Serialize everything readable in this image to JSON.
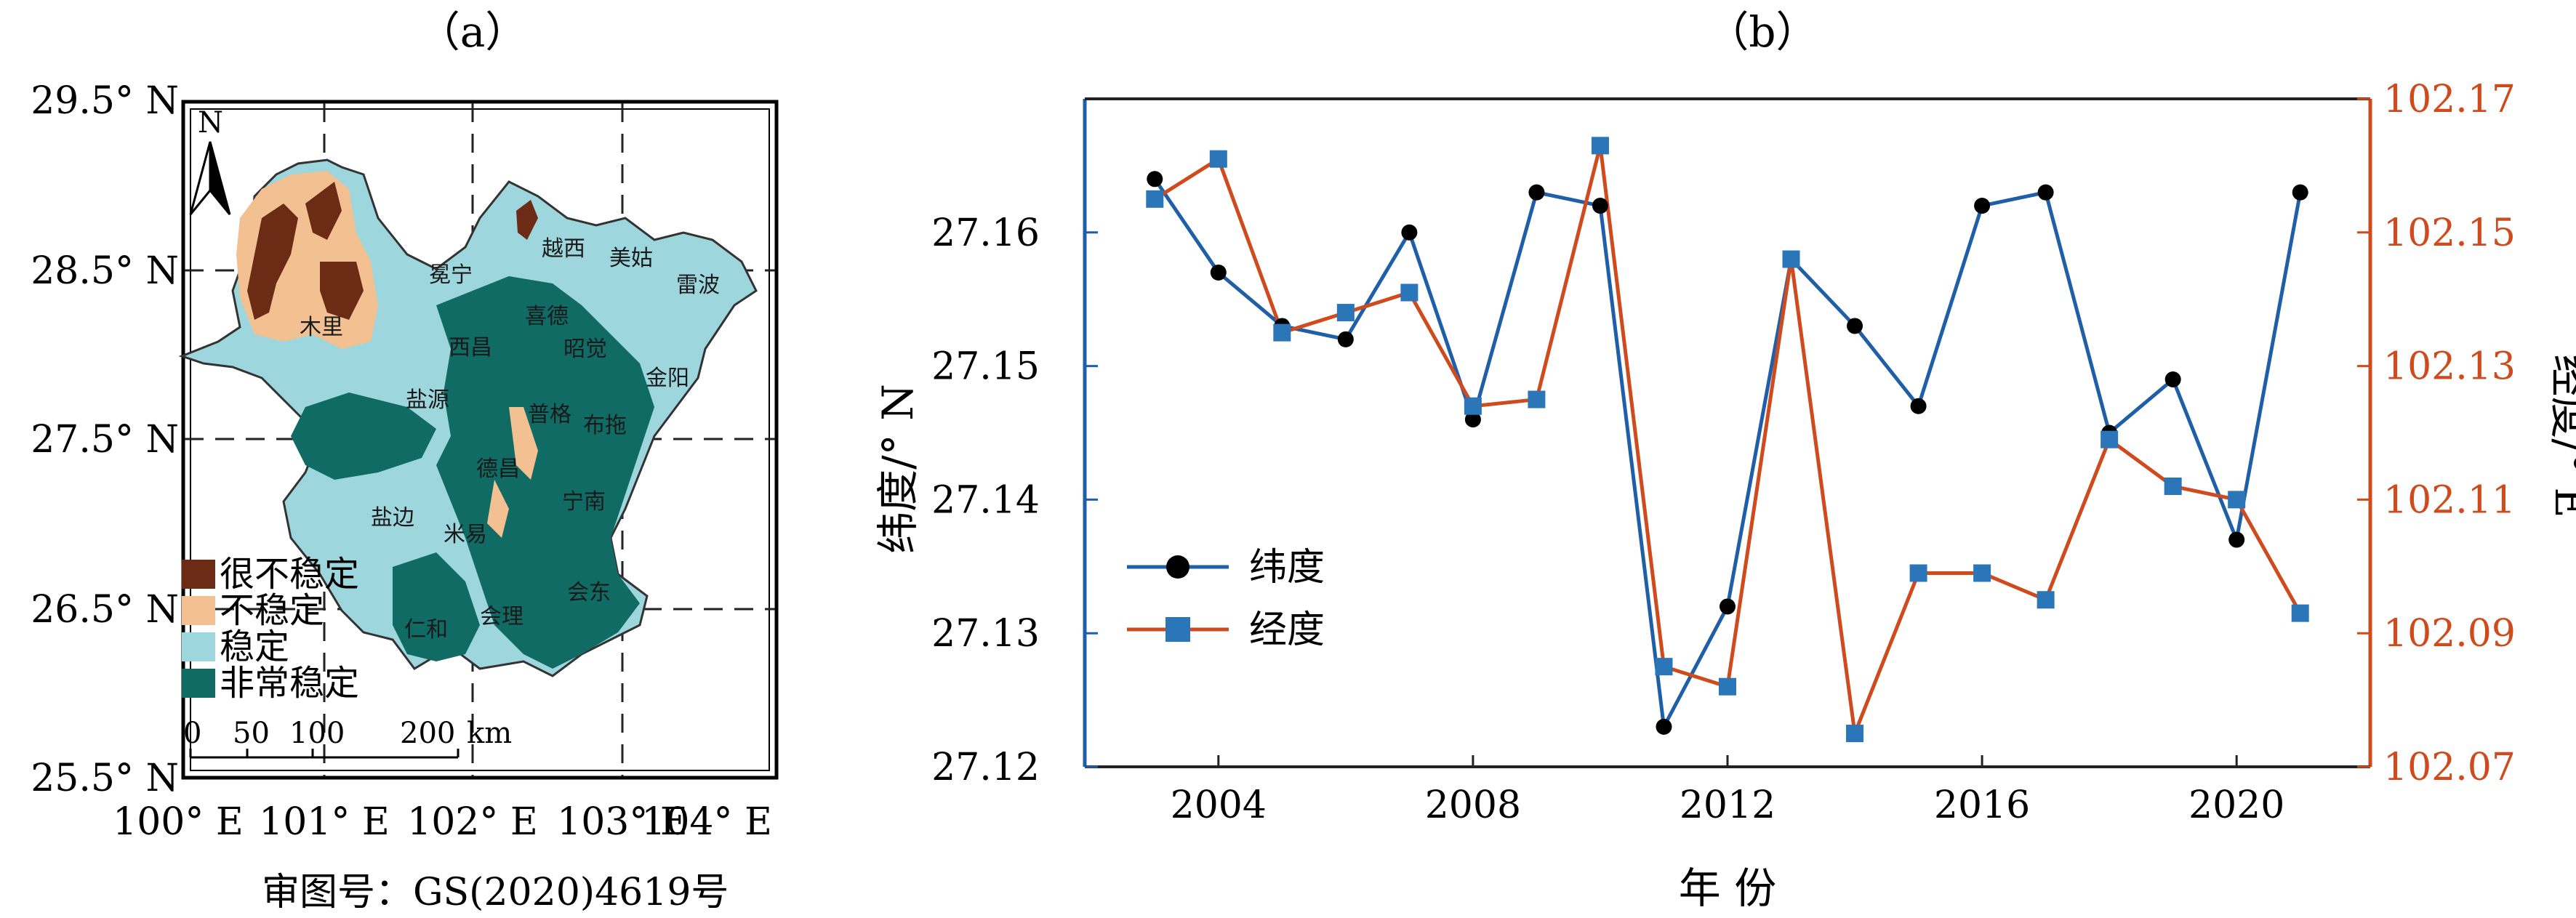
{
  "panel_a": {
    "title": "（a）",
    "y_ticks": [
      "29.5° N",
      "28.5° N",
      "27.5° N",
      "26.5° N",
      "25.5° N"
    ],
    "x_ticks": [
      "100° E",
      "101° E",
      "102° E",
      "103° E",
      "104° E"
    ],
    "north_label": "N",
    "scale_ticks": [
      "0",
      "50",
      "100",
      "200"
    ],
    "scale_unit": "km",
    "legend": [
      {
        "label": "很不稳定",
        "color": "#6b2b14"
      },
      {
        "label": "不稳定",
        "color": "#f3c191"
      },
      {
        "label": "稳定",
        "color": "#9dd6dd"
      },
      {
        "label": "非常稳定",
        "color": "#0f6b63"
      }
    ],
    "place_names": [
      "冕宁",
      "越西",
      "美姑",
      "雷波",
      "木里",
      "喜德",
      "昭觉",
      "金阳",
      "西昌",
      "盐源",
      "普格",
      "布拖",
      "德昌",
      "宁南",
      "盐边",
      "米易",
      "仁和",
      "会理",
      "会东"
    ],
    "approval_number": "审图号：GS(2020)4619号"
  },
  "panel_b": {
    "title": "（b）"
  },
  "chart_data": {
    "type": "line",
    "x": [
      2003,
      2004,
      2005,
      2006,
      2007,
      2008,
      2009,
      2010,
      2011,
      2012,
      2013,
      2014,
      2015,
      2016,
      2017,
      2018,
      2019,
      2020,
      2021
    ],
    "x_ticks": [
      "2004",
      "2008",
      "2012",
      "2016",
      "2020"
    ],
    "xlabel": "年 份",
    "xlim": [
      2001.9,
      2022.1
    ],
    "ylabel_left": "纬度/° N",
    "ylabel_right": "经度/° E",
    "ylim_left": [
      27.12,
      27.17
    ],
    "ylim_right": [
      102.07,
      102.17
    ],
    "yticks_left": [
      "27.12",
      "27.13",
      "27.14",
      "27.15",
      "27.16"
    ],
    "yticks_right": [
      "102.07",
      "102.09",
      "102.11",
      "102.13",
      "102.15",
      "102.17"
    ],
    "grid": false,
    "legend_position": "lower-left",
    "series": [
      {
        "name": "纬度",
        "axis": "left",
        "color": "#1f5fa8",
        "marker": "circle",
        "values": [
          27.164,
          27.157,
          27.153,
          27.152,
          27.16,
          27.146,
          27.163,
          27.162,
          27.123,
          27.132,
          27.158,
          27.153,
          27.147,
          27.162,
          27.163,
          27.145,
          27.149,
          27.137,
          27.163
        ]
      },
      {
        "name": "经度",
        "axis": "right",
        "color": "#cf4a1c",
        "marker": "square",
        "values": [
          102.155,
          102.161,
          102.135,
          102.138,
          102.141,
          102.124,
          102.125,
          102.163,
          102.085,
          102.082,
          102.146,
          102.075,
          102.099,
          102.099,
          102.095,
          102.119,
          102.112,
          102.11,
          102.093
        ]
      }
    ]
  }
}
